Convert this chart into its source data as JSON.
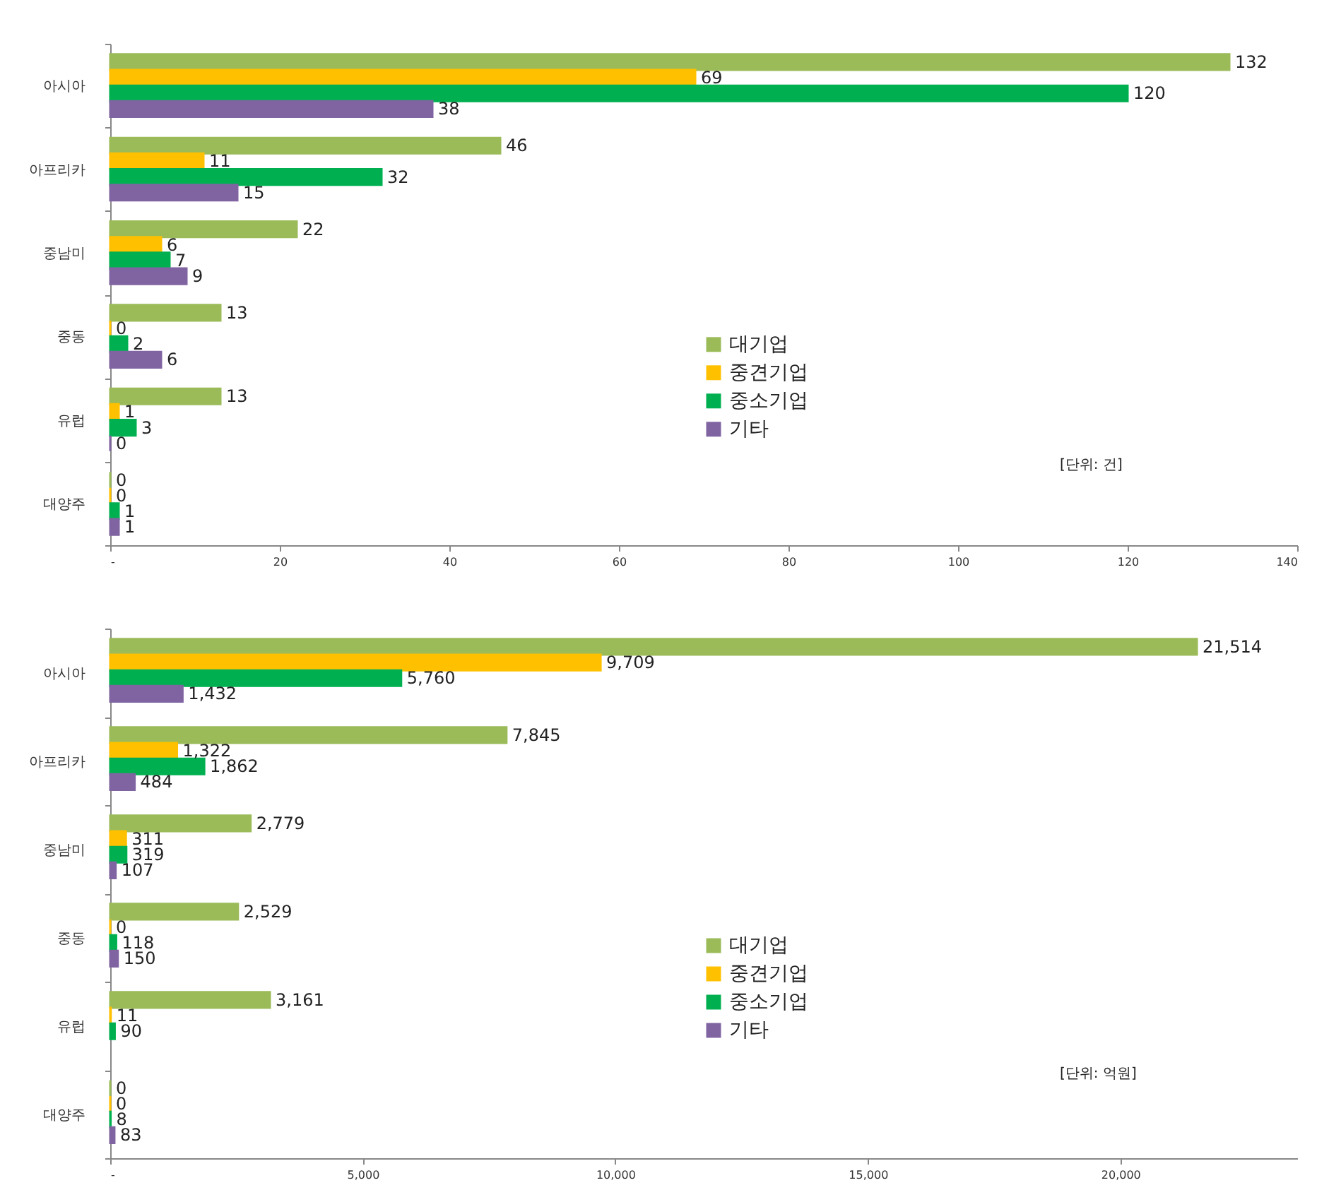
{
  "chart_data": [
    {
      "type": "bar",
      "orientation": "horizontal",
      "categories": [
        "아시아",
        "아프리카",
        "중남미",
        "중동",
        "유럽",
        "대양주"
      ],
      "series": [
        {
          "name": "대기업",
          "color": "#9bbb59",
          "values": [
            132,
            46,
            22,
            13,
            13,
            0
          ]
        },
        {
          "name": "중견기업",
          "color": "#ffc000",
          "values": [
            69,
            11,
            6,
            0,
            1,
            0
          ]
        },
        {
          "name": "중소기업",
          "color": "#00b050",
          "values": [
            120,
            32,
            7,
            2,
            3,
            1
          ]
        },
        {
          "name": "기타",
          "color": "#8064a2",
          "values": [
            38,
            15,
            9,
            6,
            0,
            1
          ]
        }
      ],
      "xlim": [
        0,
        140
      ],
      "xticks": [
        {
          "value": 0,
          "label": "-"
        },
        20,
        40,
        60,
        80,
        100,
        120,
        140
      ],
      "data_labels": true,
      "legend": "bottom right",
      "annotations": [
        "[단위: 건]"
      ]
    },
    {
      "type": "bar",
      "orientation": "horizontal",
      "categories": [
        "아시아",
        "아프리카",
        "중남미",
        "중동",
        "유럽",
        "대양주"
      ],
      "series": [
        {
          "name": "대기업",
          "color": "#9bbb59",
          "values": [
            21514,
            7845,
            2779,
            2529,
            3161,
            0
          ],
          "value_labels": [
            "21,514",
            "7,845",
            "2,779",
            "2,529",
            "3,161",
            "0"
          ]
        },
        {
          "name": "중견기업",
          "color": "#ffc000",
          "values": [
            9709,
            1322,
            311,
            0,
            11,
            0
          ],
          "value_labels": [
            "9,709",
            "1,322",
            "311",
            "0",
            "11",
            "0"
          ]
        },
        {
          "name": "중소기업",
          "color": "#00b050",
          "values": [
            5760,
            1862,
            319,
            118,
            90,
            8
          ],
          "value_labels": [
            "5,760",
            "1,862",
            "319",
            "118",
            "90",
            "8"
          ]
        },
        {
          "name": "기타",
          "color": "#8064a2",
          "values": [
            1432,
            484,
            107,
            150,
            null,
            83
          ],
          "value_labels": [
            "1,432",
            "484",
            "107",
            "150",
            null,
            "83"
          ]
        }
      ],
      "xlim": [
        0,
        23500
      ],
      "xticks": [
        {
          "value": 0,
          "label": "-"
        },
        {
          "value": 5000,
          "label": "5,000"
        },
        {
          "value": 10000,
          "label": "10,000"
        },
        {
          "value": 15000,
          "label": "15,000"
        },
        {
          "value": 20000,
          "label": "20,000"
        }
      ],
      "legend": "bottom right",
      "annotations": [
        "[단위: 억원]"
      ]
    }
  ]
}
